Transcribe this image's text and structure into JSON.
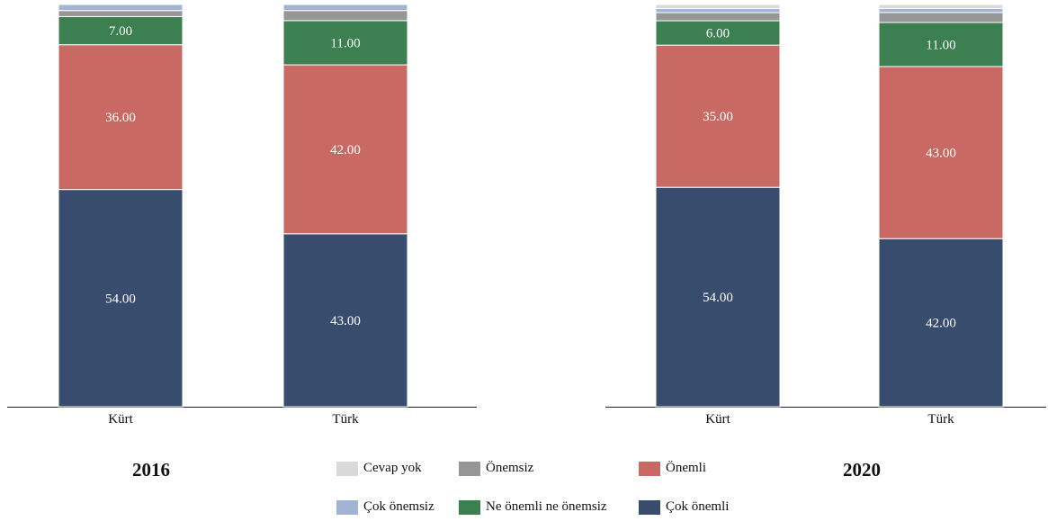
{
  "chart_data": {
    "type": "bar",
    "stacked": true,
    "percent": true,
    "legend_position": "bottom",
    "series_order": [
      "Çok önemli",
      "Önemli",
      "Ne önemli ne önemsiz",
      "Önemsiz",
      "Çok önemsiz",
      "Cevap yok"
    ],
    "colors": {
      "Çok önemli": "#384C6E",
      "Önemli": "#C96964",
      "Ne önemli ne önemsiz": "#3C7F50",
      "Önemsiz": "#969696",
      "Çok önemsiz": "#A2B4D4",
      "Cevap yok": "#D9D9D9"
    },
    "panels": [
      {
        "title": "2016",
        "categories": [
          "Kürt",
          "Türk"
        ],
        "series": [
          {
            "name": "Çok önemli",
            "values": [
              54,
              43
            ],
            "labels": [
              "54.00",
              "43.00"
            ]
          },
          {
            "name": "Önemli",
            "values": [
              36,
              42
            ],
            "labels": [
              "36.00",
              "42.00"
            ]
          },
          {
            "name": "Ne önemli ne önemsiz",
            "values": [
              7,
              11
            ],
            "labels": [
              "7.00",
              "11.00"
            ]
          },
          {
            "name": "Önemsiz",
            "values": [
              1.5,
              2.5
            ],
            "labels": [
              "",
              ""
            ]
          },
          {
            "name": "Çok önemsiz",
            "values": [
              1.5,
              1.5
            ],
            "labels": [
              "",
              ""
            ]
          },
          {
            "name": "Cevap yok",
            "values": [
              0,
              0
            ],
            "labels": [
              "",
              ""
            ]
          }
        ]
      },
      {
        "title": "2020",
        "categories": [
          "Kürt",
          "Türk"
        ],
        "series": [
          {
            "name": "Çok önemli",
            "values": [
              54,
              42
            ],
            "labels": [
              "54.00",
              "42.00"
            ]
          },
          {
            "name": "Önemli",
            "values": [
              35,
              43
            ],
            "labels": [
              "35.00",
              "43.00"
            ]
          },
          {
            "name": "Ne önemli ne önemsiz",
            "values": [
              6,
              11
            ],
            "labels": [
              "6.00",
              "11.00"
            ]
          },
          {
            "name": "Önemsiz",
            "values": [
              2,
              2.5
            ],
            "labels": [
              "",
              ""
            ]
          },
          {
            "name": "Çok önemsiz",
            "values": [
              1,
              1
            ],
            "labels": [
              "",
              ""
            ]
          },
          {
            "name": "Cevap yok",
            "values": [
              1,
              1
            ],
            "labels": [
              "",
              ""
            ]
          }
        ]
      }
    ]
  },
  "legend": {
    "items": [
      {
        "label": "Cevap yok",
        "color": "#D9D9D9"
      },
      {
        "label": "Önemsiz",
        "color": "#969696"
      },
      {
        "label": "Önemli",
        "color": "#C96964"
      },
      {
        "label": "Çok önemsiz",
        "color": "#A2B4D4"
      },
      {
        "label": "Ne önemli ne önemsiz",
        "color": "#3C7F50"
      },
      {
        "label": "Çok önemli",
        "color": "#384C6E"
      }
    ]
  }
}
